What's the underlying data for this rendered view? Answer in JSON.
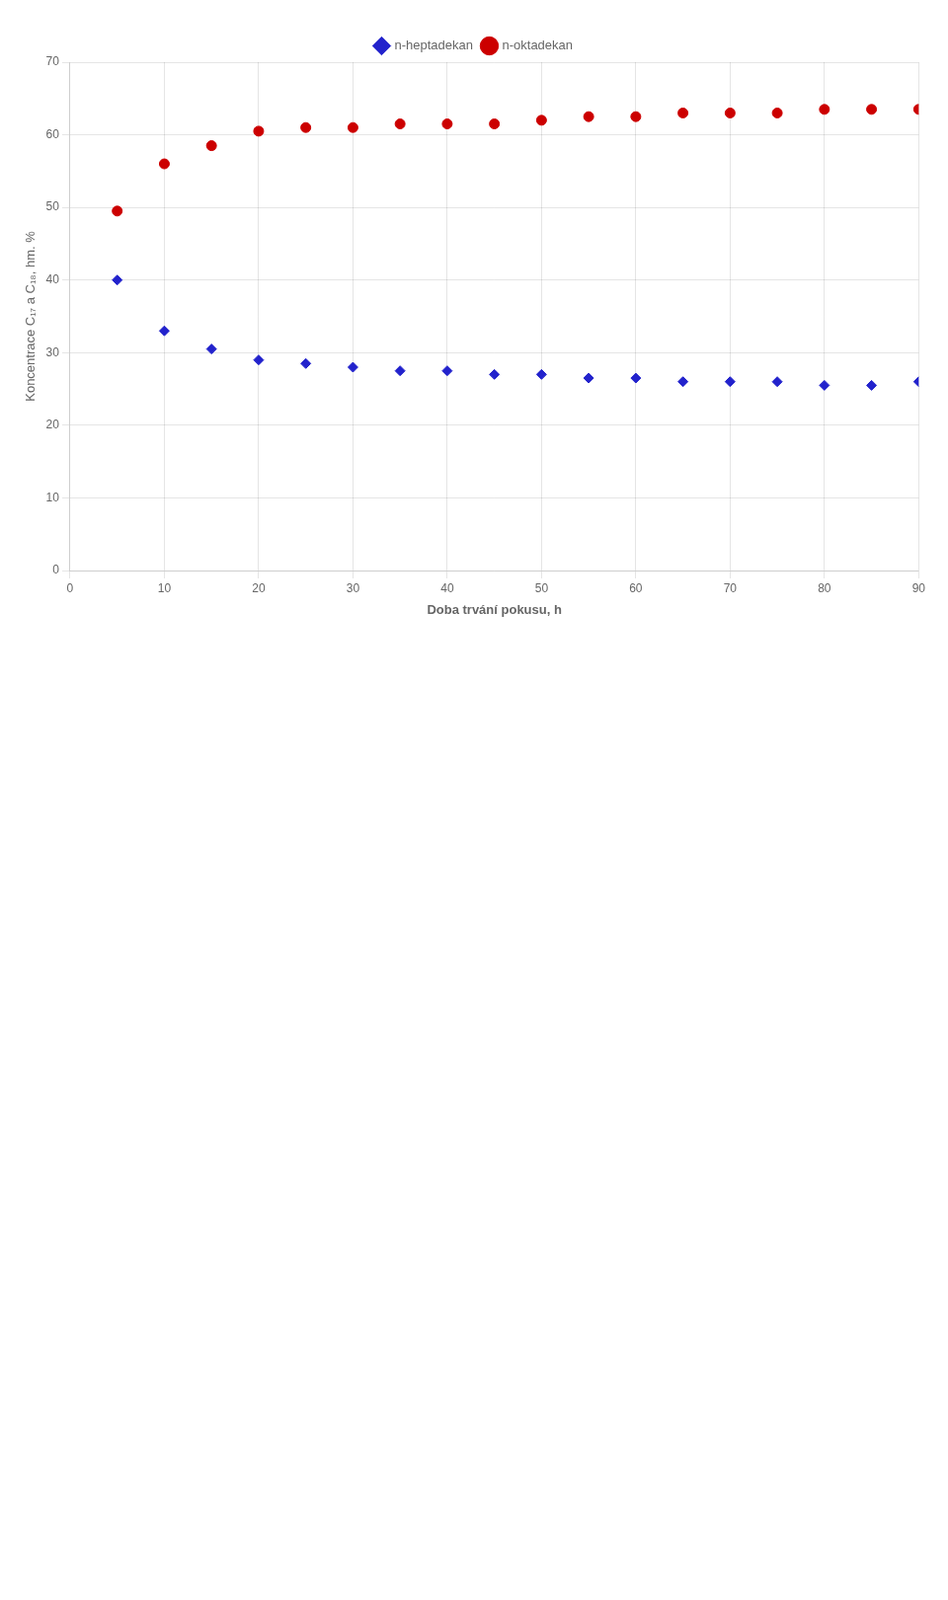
{
  "chart_data": {
    "type": "scatter",
    "xlabel": "Doba trvání pokusu, h",
    "ylabel": "Koncentrace C₁₇ a C₁₈, hm. %",
    "xlim": [
      0,
      90
    ],
    "ylim": [
      0,
      70
    ],
    "xticks": [
      0,
      10,
      20,
      30,
      40,
      50,
      60,
      70,
      80,
      90
    ],
    "yticks": [
      0,
      10,
      20,
      30,
      40,
      50,
      60,
      70
    ],
    "grid": true,
    "legend": "top",
    "x": [
      5,
      10,
      15,
      20,
      25,
      30,
      35,
      40,
      45,
      50,
      55,
      60,
      65,
      70,
      75,
      80,
      85,
      90
    ],
    "series": [
      {
        "name": "n-heptadekan",
        "color": "#2222cc",
        "marker": "diamond",
        "values": [
          40.0,
          33.0,
          30.5,
          29.0,
          28.5,
          28.0,
          27.5,
          27.5,
          27.0,
          27.0,
          26.5,
          26.5,
          26.0,
          26.0,
          26.0,
          25.5,
          25.5,
          26.0
        ]
      },
      {
        "name": "n-oktadekan",
        "color": "#cc0000",
        "marker": "circle",
        "values": [
          49.5,
          56.0,
          58.5,
          60.5,
          61.0,
          61.0,
          61.5,
          61.5,
          61.5,
          62.0,
          62.5,
          62.5,
          63.0,
          63.0,
          63.0,
          63.5,
          63.5,
          63.5
        ]
      }
    ]
  }
}
